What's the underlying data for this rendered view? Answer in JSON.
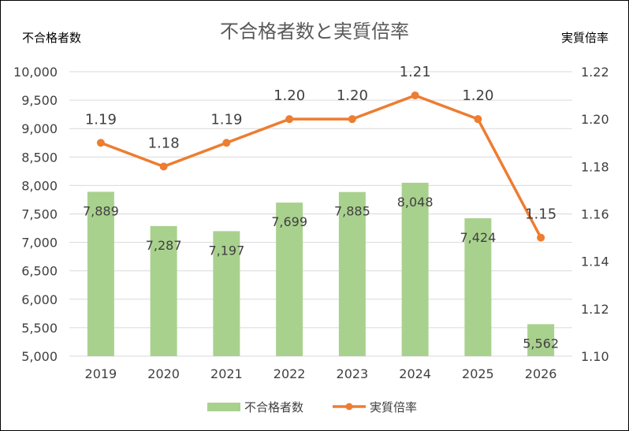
{
  "chart_data": {
    "type": "bar+line",
    "title": "不合格者数と実質倍率",
    "categories": [
      "2019",
      "2020",
      "2021",
      "2022",
      "2023",
      "2024",
      "2025",
      "2026"
    ],
    "left_axis": {
      "label": "不合格者数",
      "ylim": [
        5000,
        10000
      ],
      "ticks": [
        5000,
        5500,
        6000,
        6500,
        7000,
        7500,
        8000,
        8500,
        9000,
        9500,
        10000
      ],
      "tick_labels": [
        "5,000",
        "5,500",
        "6,000",
        "6,500",
        "7,000",
        "7,500",
        "8,000",
        "8,500",
        "9,000",
        "9,500",
        "10,000"
      ]
    },
    "right_axis": {
      "label": "実質倍率",
      "ylim": [
        1.1,
        1.22
      ],
      "ticks": [
        1.1,
        1.12,
        1.14,
        1.16,
        1.18,
        1.2,
        1.22
      ],
      "tick_labels": [
        "1.10",
        "1.12",
        "1.14",
        "1.16",
        "1.18",
        "1.20",
        "1.22"
      ]
    },
    "series": [
      {
        "name": "不合格者数",
        "kind": "bar",
        "axis": "left",
        "color": "#a9d18e",
        "values": [
          7889,
          7287,
          7197,
          7699,
          7885,
          8048,
          7424,
          5562
        ],
        "labels": [
          "7,889",
          "7,287",
          "7,197",
          "7,699",
          "7,885",
          "8,048",
          "7,424",
          "5,562"
        ]
      },
      {
        "name": "実質倍率",
        "kind": "line",
        "axis": "right",
        "color": "#ed7d31",
        "values": [
          1.19,
          1.18,
          1.19,
          1.2,
          1.2,
          1.21,
          1.2,
          1.15
        ],
        "labels": [
          "1.19",
          "1.18",
          "1.19",
          "1.20",
          "1.20",
          "1.21",
          "1.20",
          "1.15"
        ]
      }
    ],
    "grid": true,
    "legend": "bottom",
    "colors": {
      "gridline": "#d9d9d9",
      "text": "#404040"
    }
  }
}
